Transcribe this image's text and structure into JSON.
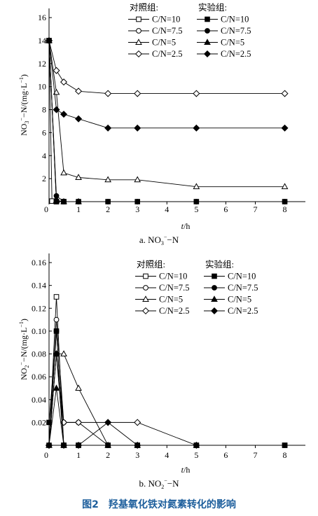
{
  "figure_title": "图2　羟基氧化铁对氮素转化的影响",
  "chart_data": [
    {
      "type": "line",
      "caption_prefix": "a. NO",
      "caption_sub": "3",
      "caption_sup": "−",
      "caption_suffix": "−N",
      "xlabel_italic": "t",
      "xlabel_rest": "/h",
      "ylabel_prefix": "NO",
      "ylabel_sub": "3",
      "ylabel_sup": "−",
      "ylabel_rest": "−N/(mg·L",
      "ylabel_sup2": "−1",
      "ylabel_end": ")",
      "xlim": [
        0,
        8.7
      ],
      "ylim": [
        0,
        16.8
      ],
      "xticks": [
        0,
        1,
        2,
        3,
        4,
        5,
        6,
        7,
        8
      ],
      "yticks": [
        0,
        2,
        4,
        6,
        8,
        10,
        12,
        14,
        16
      ],
      "ytick_decimals": 0,
      "legend_header_control": "对照组:",
      "legend_header_exp": "实验组:",
      "legend_placement": "top-right",
      "series": [
        {
          "name": "C/N=10",
          "group": "control",
          "marker": "square",
          "filled": false,
          "x": [
            0,
            0.1,
            0.25,
            0.5
          ],
          "y": [
            14,
            0.05,
            0,
            0
          ]
        },
        {
          "name": "C/N=7.5",
          "group": "control",
          "marker": "circle",
          "filled": false,
          "x": [
            0,
            0.25,
            0.5,
            1,
            2,
            3,
            5,
            8
          ],
          "y": [
            14,
            0.1,
            0,
            0,
            0,
            0,
            0,
            0
          ]
        },
        {
          "name": "C/N=5",
          "group": "control",
          "marker": "triangle",
          "filled": false,
          "x": [
            0,
            0.25,
            0.5,
            1,
            2,
            3,
            5,
            8
          ],
          "y": [
            14,
            9.5,
            2.5,
            2.1,
            1.9,
            1.9,
            1.3,
            1.3
          ]
        },
        {
          "name": "C/N=2.5",
          "group": "control",
          "marker": "diamond",
          "filled": false,
          "x": [
            0,
            0.25,
            0.5,
            1,
            2,
            3,
            5,
            8
          ],
          "y": [
            14,
            11.4,
            10.4,
            9.6,
            9.4,
            9.4,
            9.4,
            9.4
          ]
        },
        {
          "name": "C/N=10",
          "group": "experiment",
          "marker": "square",
          "filled": true,
          "x": [
            0,
            0.25,
            0.5,
            1,
            2,
            3,
            5,
            8
          ],
          "y": [
            14,
            0,
            0,
            0,
            0,
            0,
            0,
            0
          ]
        },
        {
          "name": "C/N=7.5",
          "group": "experiment",
          "marker": "circle",
          "filled": true,
          "x": [
            0,
            0.25,
            0.5,
            1
          ],
          "y": [
            14,
            0.5,
            0,
            0
          ]
        },
        {
          "name": "C/N=5",
          "group": "experiment",
          "marker": "triangle",
          "filled": true,
          "x": [
            0,
            0.25,
            0.5,
            1
          ],
          "y": [
            14,
            0.1,
            0,
            0
          ]
        },
        {
          "name": "C/N=2.5",
          "group": "experiment",
          "marker": "diamond",
          "filled": true,
          "x": [
            0,
            0.25,
            0.5,
            1,
            2,
            3,
            5,
            8
          ],
          "y": [
            14,
            8,
            7.6,
            7.2,
            6.4,
            6.4,
            6.4,
            6.4
          ]
        }
      ]
    },
    {
      "type": "line",
      "caption_prefix": "b. NO",
      "caption_sub": "2",
      "caption_sup": "−",
      "caption_suffix": "−N",
      "xlabel_italic": "t",
      "xlabel_rest": "/h",
      "ylabel_prefix": "NO",
      "ylabel_sub": "2",
      "ylabel_sup": "−",
      "ylabel_rest": "−N/(mg·L",
      "ylabel_sup2": "−1",
      "ylabel_end": ")",
      "xlim": [
        0,
        8.7
      ],
      "ylim": [
        0,
        0.168
      ],
      "xticks": [
        0,
        1,
        2,
        3,
        4,
        5,
        6,
        7,
        8
      ],
      "yticks": [
        0,
        0.02,
        0.04,
        0.06,
        0.08,
        0.1,
        0.12,
        0.14,
        0.16
      ],
      "ytick_decimals": 2,
      "legend_header_control": "对照组:",
      "legend_header_exp": "实验组:",
      "legend_placement": "top-right",
      "series": [
        {
          "name": "C/N=10",
          "group": "control",
          "marker": "square",
          "filled": false,
          "x": [
            0,
            0.25,
            0.5,
            1,
            2,
            3,
            5,
            8
          ],
          "y": [
            0,
            0.13,
            0,
            0,
            0,
            0,
            0,
            0
          ]
        },
        {
          "name": "C/N=7.5",
          "group": "control",
          "marker": "circle",
          "filled": false,
          "x": [
            0,
            0.25,
            0.5,
            1,
            2
          ],
          "y": [
            0,
            0.11,
            0.02,
            0.02,
            0
          ]
        },
        {
          "name": "C/N=5",
          "group": "control",
          "marker": "triangle",
          "filled": false,
          "x": [
            0,
            0.25,
            0.5,
            1,
            2,
            3,
            5
          ],
          "y": [
            0,
            0.08,
            0.08,
            0.05,
            0,
            0,
            0
          ]
        },
        {
          "name": "C/N=2.5",
          "group": "control",
          "marker": "diamond",
          "filled": false,
          "x": [
            0,
            0.25,
            0.5,
            1,
            2,
            3,
            5
          ],
          "y": [
            0,
            0.08,
            0.02,
            0.02,
            0.02,
            0.02,
            0
          ]
        },
        {
          "name": "C/N=10",
          "group": "experiment",
          "marker": "square",
          "filled": true,
          "x": [
            0,
            0.25,
            0.5,
            1,
            2,
            3,
            5,
            8
          ],
          "y": [
            0.02,
            0.1,
            0,
            0,
            0,
            0,
            0,
            0
          ]
        },
        {
          "name": "C/N=7.5",
          "group": "experiment",
          "marker": "circle",
          "filled": true,
          "x": [
            0,
            0.25,
            0.5,
            1
          ],
          "y": [
            0,
            0.1,
            0,
            0
          ]
        },
        {
          "name": "C/N=5",
          "group": "experiment",
          "marker": "triangle",
          "filled": true,
          "x": [
            0,
            0.25,
            0.5
          ],
          "y": [
            0,
            0.05,
            0
          ]
        },
        {
          "name": "C/N=2.5",
          "group": "experiment",
          "marker": "diamond",
          "filled": true,
          "x": [
            0,
            0.25,
            0.5,
            1,
            2,
            3
          ],
          "y": [
            0,
            0.08,
            0,
            0,
            0.02,
            0
          ]
        }
      ]
    }
  ]
}
